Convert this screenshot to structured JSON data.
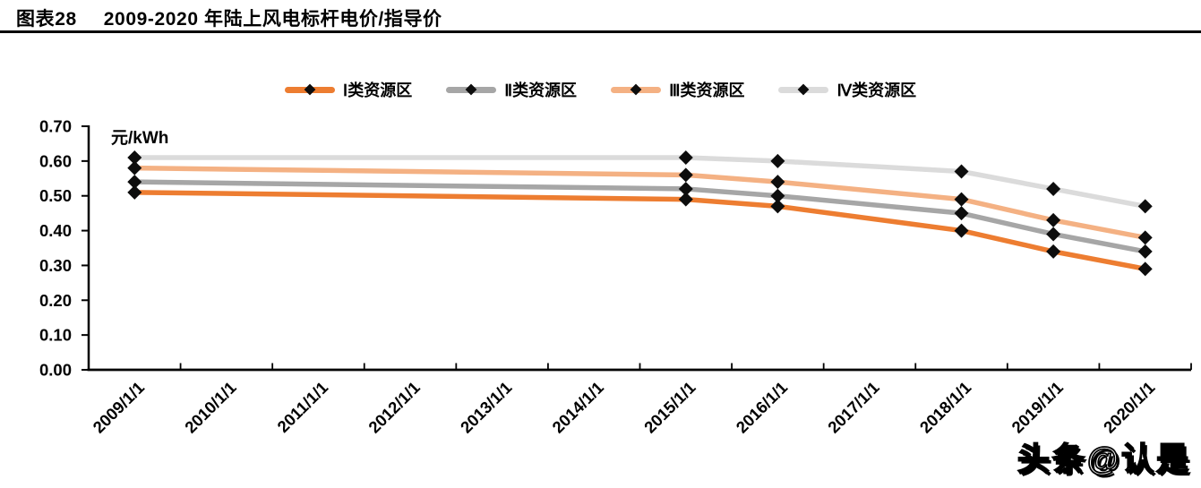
{
  "figure": {
    "label": "图表28",
    "title": "2009-2020 年陆上风电标杆电价/指导价"
  },
  "watermark": {
    "text": "头条@认是"
  },
  "chart_data": {
    "type": "line",
    "title": "2009-2020 年陆上风电标杆电价/指导价",
    "unit_label": "元/kWh",
    "ylabel": "元/kWh",
    "xlabel": "",
    "grid": false,
    "legend_position": "top-center",
    "marker": {
      "shape": "diamond",
      "color": "#0d0d0d"
    },
    "axis_color": "#000000",
    "categories": [
      "2009/1/1",
      "2010/1/1",
      "2011/1/1",
      "2012/1/1",
      "2013/1/1",
      "2014/1/1",
      "2015/1/1",
      "2016/1/1",
      "2017/1/1",
      "2018/1/1",
      "2019/1/1",
      "2020/1/1"
    ],
    "ylim": [
      0.0,
      0.7
    ],
    "yticks": [
      0.0,
      0.1,
      0.2,
      0.3,
      0.4,
      0.5,
      0.6,
      0.7
    ],
    "ytick_labels": [
      "0.00",
      "0.10",
      "0.20",
      "0.30",
      "0.40",
      "0.50",
      "0.60",
      "0.70"
    ],
    "series": [
      {
        "name": "Ⅰ类资源区",
        "color": "#ED7D31",
        "points": [
          [
            "2009/1/1",
            0.51
          ],
          [
            "2015/1/1",
            0.49
          ],
          [
            "2016/1/1",
            0.47
          ],
          [
            "2018/1/1",
            0.4
          ],
          [
            "2019/1/1",
            0.34
          ],
          [
            "2020/1/1",
            0.29
          ]
        ]
      },
      {
        "name": "Ⅱ类资源区",
        "color": "#A6A6A6",
        "points": [
          [
            "2009/1/1",
            0.54
          ],
          [
            "2015/1/1",
            0.52
          ],
          [
            "2016/1/1",
            0.5
          ],
          [
            "2018/1/1",
            0.45
          ],
          [
            "2019/1/1",
            0.39
          ],
          [
            "2020/1/1",
            0.34
          ]
        ]
      },
      {
        "name": "Ⅲ类资源区",
        "color": "#F4B183",
        "points": [
          [
            "2009/1/1",
            0.58
          ],
          [
            "2015/1/1",
            0.56
          ],
          [
            "2016/1/1",
            0.54
          ],
          [
            "2018/1/1",
            0.49
          ],
          [
            "2019/1/1",
            0.43
          ],
          [
            "2020/1/1",
            0.38
          ]
        ]
      },
      {
        "name": "Ⅳ类资源区",
        "color": "#DBDBDB",
        "points": [
          [
            "2009/1/1",
            0.61
          ],
          [
            "2015/1/1",
            0.61
          ],
          [
            "2016/1/1",
            0.6
          ],
          [
            "2018/1/1",
            0.57
          ],
          [
            "2019/1/1",
            0.52
          ],
          [
            "2020/1/1",
            0.47
          ]
        ]
      }
    ]
  }
}
